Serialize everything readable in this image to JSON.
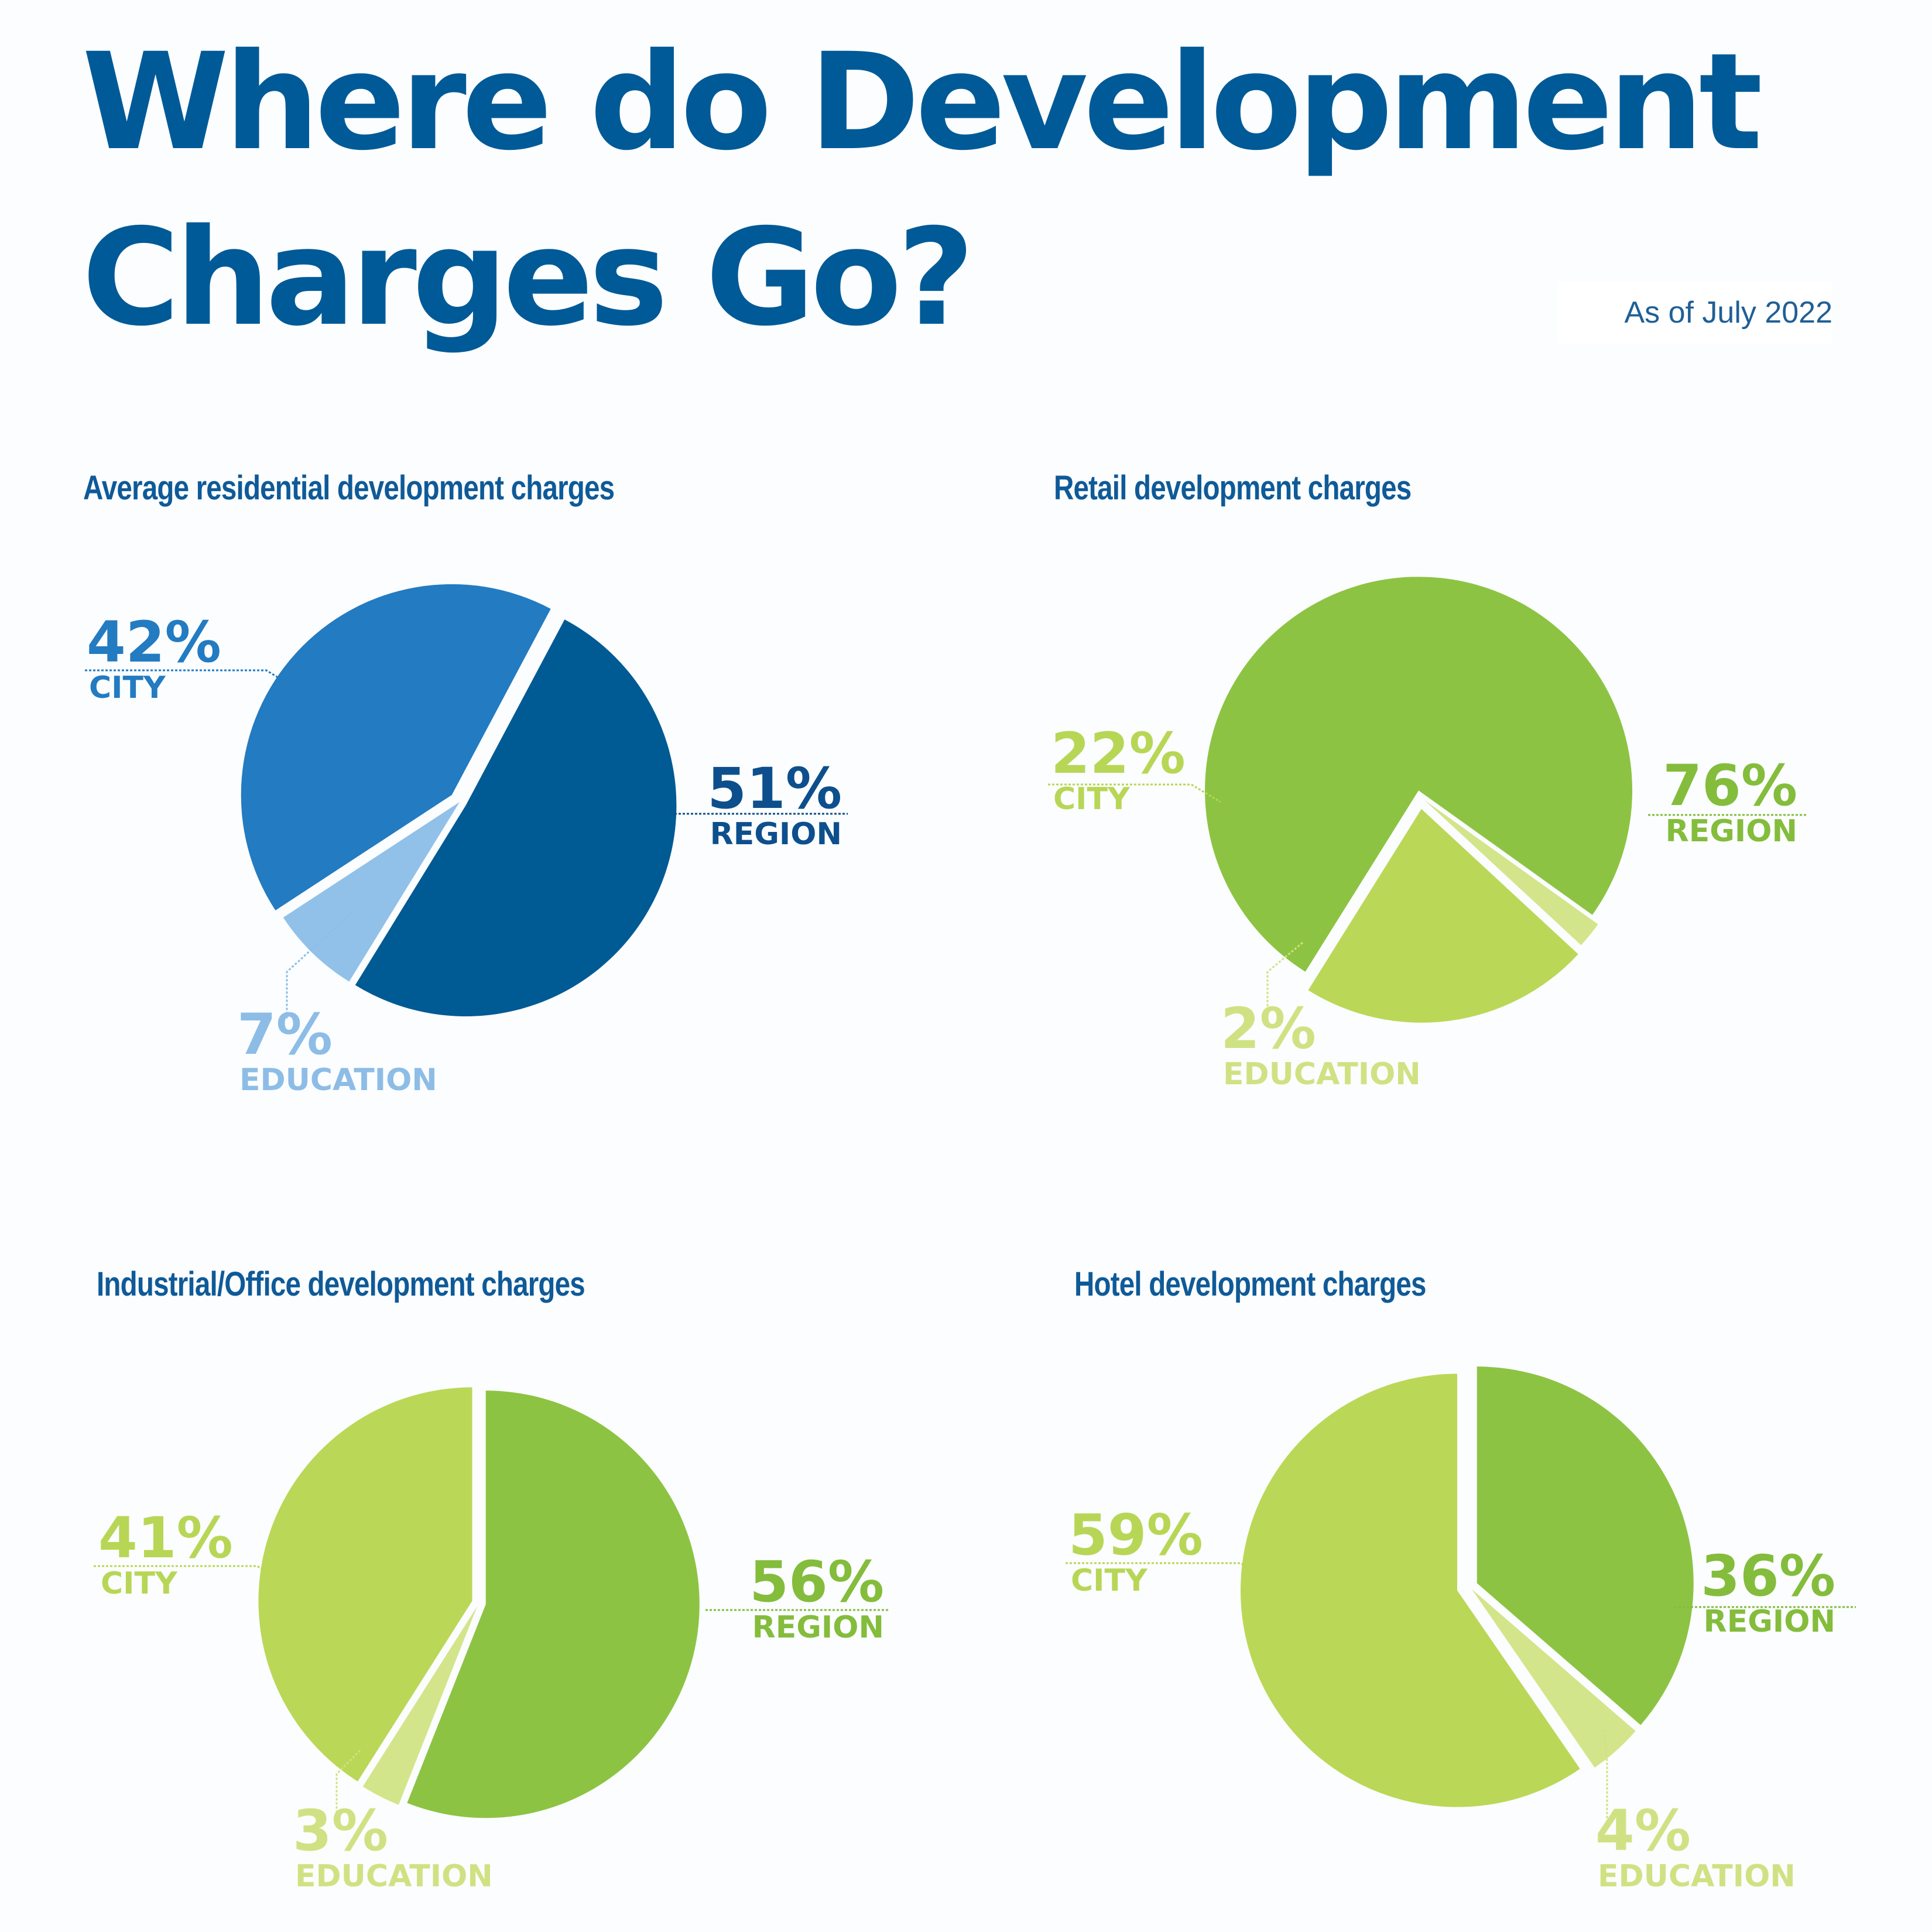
{
  "title": {
    "line1": "Where do Development",
    "line2": "Charges Go?"
  },
  "as_of": "As of July 2022",
  "chart_data": [
    {
      "type": "pie",
      "title": "Average residential development charges",
      "slices": [
        {
          "label": "REGION",
          "value": 51,
          "display": "51%",
          "color": "#005a94"
        },
        {
          "label": "CITY",
          "value": 42,
          "display": "42%",
          "color": "#237bc1"
        },
        {
          "label": "EDUCATION",
          "value": 7,
          "display": "7%",
          "color": "#91c1e9"
        }
      ],
      "label_colors": {
        "REGION": "#0d4f8c",
        "CITY": "#237bc1",
        "EDUCATION": "#8dbde6"
      }
    },
    {
      "type": "pie",
      "title": "Retail development charges",
      "slices": [
        {
          "label": "REGION",
          "value": 76,
          "display": "76%",
          "color": "#8dc343"
        },
        {
          "label": "CITY",
          "value": 22,
          "display": "22%",
          "color": "#bbd757"
        },
        {
          "label": "EDUCATION",
          "value": 2,
          "display": "2%",
          "color": "#d3e58a"
        }
      ],
      "label_colors": {
        "REGION": "#84bc3c",
        "CITY": "#b8d656",
        "EDUCATION": "#cfe283"
      }
    },
    {
      "type": "pie",
      "title": "Industrial/Office development charges",
      "slices": [
        {
          "label": "REGION",
          "value": 56,
          "display": "56%",
          "color": "#8dc343"
        },
        {
          "label": "CITY",
          "value": 41,
          "display": "41%",
          "color": "#bbd757"
        },
        {
          "label": "EDUCATION",
          "value": 3,
          "display": "3%",
          "color": "#d3e58a"
        }
      ],
      "label_colors": {
        "REGION": "#84bc3c",
        "CITY": "#b8d656",
        "EDUCATION": "#cfe283"
      }
    },
    {
      "type": "pie",
      "title": "Hotel development charges",
      "slices": [
        {
          "label": "REGION",
          "value": 36,
          "display": "36%",
          "color": "#8dc343"
        },
        {
          "label": "CITY",
          "value": 59,
          "display": "59%",
          "color": "#bbd757"
        },
        {
          "label": "EDUCATION",
          "value": 4,
          "display": "4%",
          "color": "#d3e58a"
        }
      ],
      "label_colors": {
        "REGION": "#84bc3c",
        "CITY": "#b8d656",
        "EDUCATION": "#cfe283"
      }
    }
  ]
}
